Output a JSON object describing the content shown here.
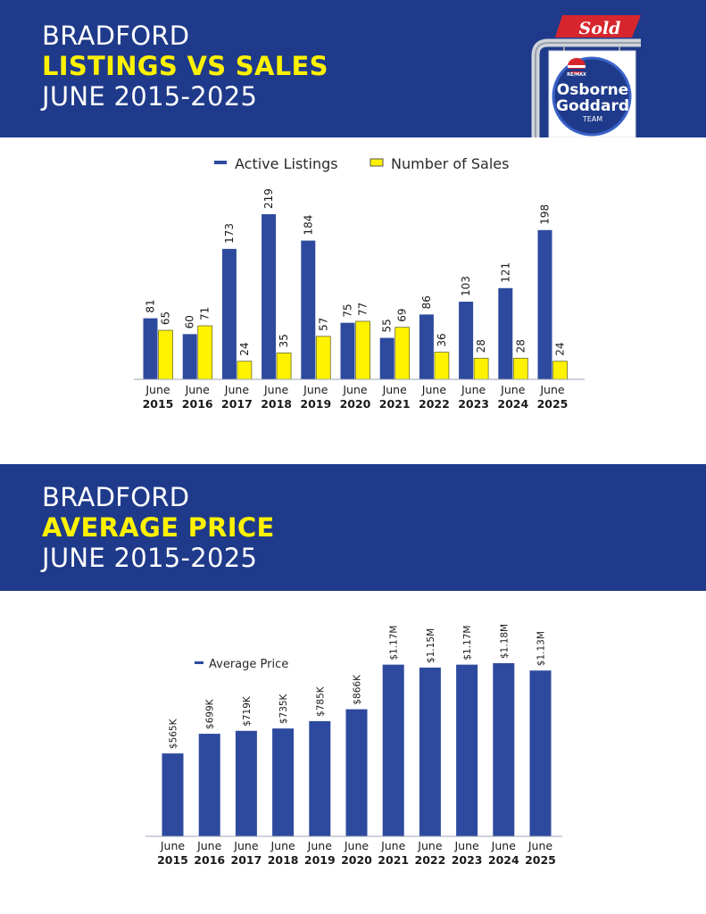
{
  "header1": {
    "line1": "BRADFORD",
    "line2": "LISTINGS VS SALES",
    "line3": "JUNE 2015-2025"
  },
  "header2": {
    "line1": "BRADFORD",
    "line2": "AVERAGE PRICE",
    "line3": "JUNE 2015-2025"
  },
  "logo": {
    "sold": "Sold",
    "brand": "RE/MAX",
    "name1": "Osborne",
    "name2": "Goddard",
    "team": "TEAM"
  },
  "colors": {
    "banner": "#1f3a8a",
    "bar_blue": "#2e4a9e",
    "bar_yellow": "#fff200",
    "accent_yellow": "#fff200",
    "sold_red": "#d7262e"
  },
  "chart_data": [
    {
      "type": "bar",
      "categories": [
        "June 2015",
        "June 2016",
        "June 2017",
        "June 2018",
        "June 2019",
        "June 2020",
        "June 2021",
        "June 2022",
        "June 2023",
        "June 2024",
        "June 2025"
      ],
      "series": [
        {
          "name": "Active Listings",
          "color": "#2e4a9e",
          "values": [
            81,
            60,
            173,
            219,
            184,
            75,
            55,
            86,
            103,
            121,
            198
          ]
        },
        {
          "name": "Number of Sales",
          "color": "#fff200",
          "values": [
            65,
            71,
            24,
            35,
            57,
            77,
            69,
            36,
            28,
            28,
            24
          ]
        }
      ],
      "ylim": [
        0,
        219
      ],
      "grid": false,
      "legend": "top-center"
    },
    {
      "type": "bar",
      "categories": [
        "June 2015",
        "June 2016",
        "June 2017",
        "June 2018",
        "June 2019",
        "June 2020",
        "June 2021",
        "June 2022",
        "June 2023",
        "June 2024",
        "June 2025"
      ],
      "series": [
        {
          "name": "Average Price",
          "color": "#2e4a9e",
          "values": [
            565000,
            699000,
            719000,
            735000,
            785000,
            866000,
            1170000,
            1150000,
            1170000,
            1180000,
            1130000
          ],
          "labels": [
            "$565K",
            "$699K",
            "$719K",
            "$735K",
            "$785K",
            "$866K",
            "$1.17M",
            "$1.15M",
            "$1.17M",
            "$1.18M",
            "$1.13M"
          ]
        }
      ],
      "ylim": [
        0,
        1180000
      ],
      "grid": false,
      "legend": "top-left"
    }
  ]
}
